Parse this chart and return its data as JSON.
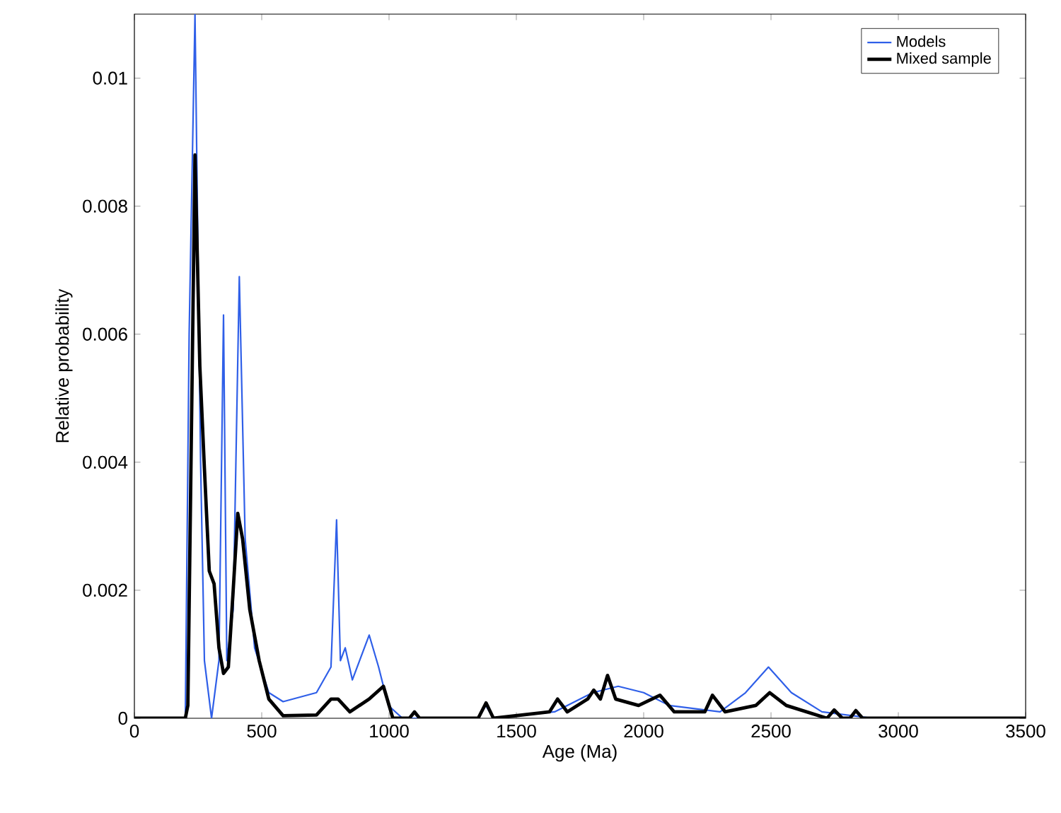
{
  "chart_data": {
    "type": "line",
    "xlabel": "Age (Ma)",
    "ylabel": "Relative probability",
    "xlim": [
      0,
      3500
    ],
    "ylim": [
      0,
      0.011
    ],
    "xticks": [
      0,
      500,
      1000,
      1500,
      2000,
      2500,
      3000,
      3500
    ],
    "yticks": [
      0,
      0.002,
      0.004,
      0.006,
      0.008,
      0.01
    ],
    "legend": "top right",
    "grid": false,
    "marker": "none",
    "line_style": "solid",
    "series": [
      {
        "name": "Models",
        "color": "#2f5fe8",
        "x": [
          0,
          200,
          215,
          238,
          260,
          275,
          303,
          332,
          350,
          363,
          388,
          412,
          435,
          472,
          528,
          584,
          715,
          772,
          794,
          809,
          828,
          856,
          922,
          959,
          997,
          1053,
          1350,
          1380,
          1410,
          1650,
          1800,
          1900,
          2000,
          2100,
          2300,
          2400,
          2490,
          2580,
          2700,
          2900,
          3500
        ],
        "values": [
          0,
          0,
          0.006,
          0.011,
          0.004,
          0.0009,
          0,
          0.0009,
          0.0063,
          0.0009,
          0.0017,
          0.0069,
          0.0028,
          0.0011,
          0.0004,
          0.00026,
          0.0004,
          0.0008,
          0.0031,
          0.0009,
          0.0011,
          0.0006,
          0.0013,
          0.0008,
          0.0002,
          0,
          0,
          0.0002,
          0,
          0.0001,
          0.0004,
          0.0005,
          0.0004,
          0.0002,
          0.0001,
          0.0004,
          0.0008,
          0.0004,
          0.0001,
          0,
          0
        ]
      },
      {
        "name": "Mixed sample",
        "color": "#000000",
        "x": [
          0,
          200,
          210,
          238,
          257,
          275,
          294,
          313,
          332,
          350,
          369,
          388,
          406,
          425,
          453,
          490,
          528,
          584,
          715,
          772,
          800,
          846,
          922,
          978,
          1015,
          1080,
          1100,
          1120,
          1350,
          1381,
          1410,
          1630,
          1662,
          1700,
          1780,
          1804,
          1830,
          1858,
          1890,
          1980,
          2064,
          2120,
          2240,
          2270,
          2320,
          2440,
          2495,
          2560,
          2720,
          2748,
          2780,
          2810,
          2833,
          2860,
          3500
        ],
        "values": [
          0,
          0,
          0.0002,
          0.0088,
          0.0055,
          0.0039,
          0.0023,
          0.0021,
          0.0011,
          0.0007,
          0.0008,
          0.002,
          0.0032,
          0.0028,
          0.0017,
          0.0009,
          0.0003,
          4e-05,
          5e-05,
          0.0003,
          0.0003,
          0.0001,
          0.0003,
          0.0005,
          0,
          0,
          0.0001,
          0,
          0,
          0.00024,
          0,
          0.0001,
          0.0003,
          0.0001,
          0.0003,
          0.00044,
          0.0003,
          0.00067,
          0.0003,
          0.0002,
          0.00036,
          0.0001,
          0.0001,
          0.00036,
          0.0001,
          0.0002,
          0.0004,
          0.0002,
          0,
          0.00013,
          0,
          0,
          0.00012,
          0,
          0
        ]
      }
    ]
  }
}
